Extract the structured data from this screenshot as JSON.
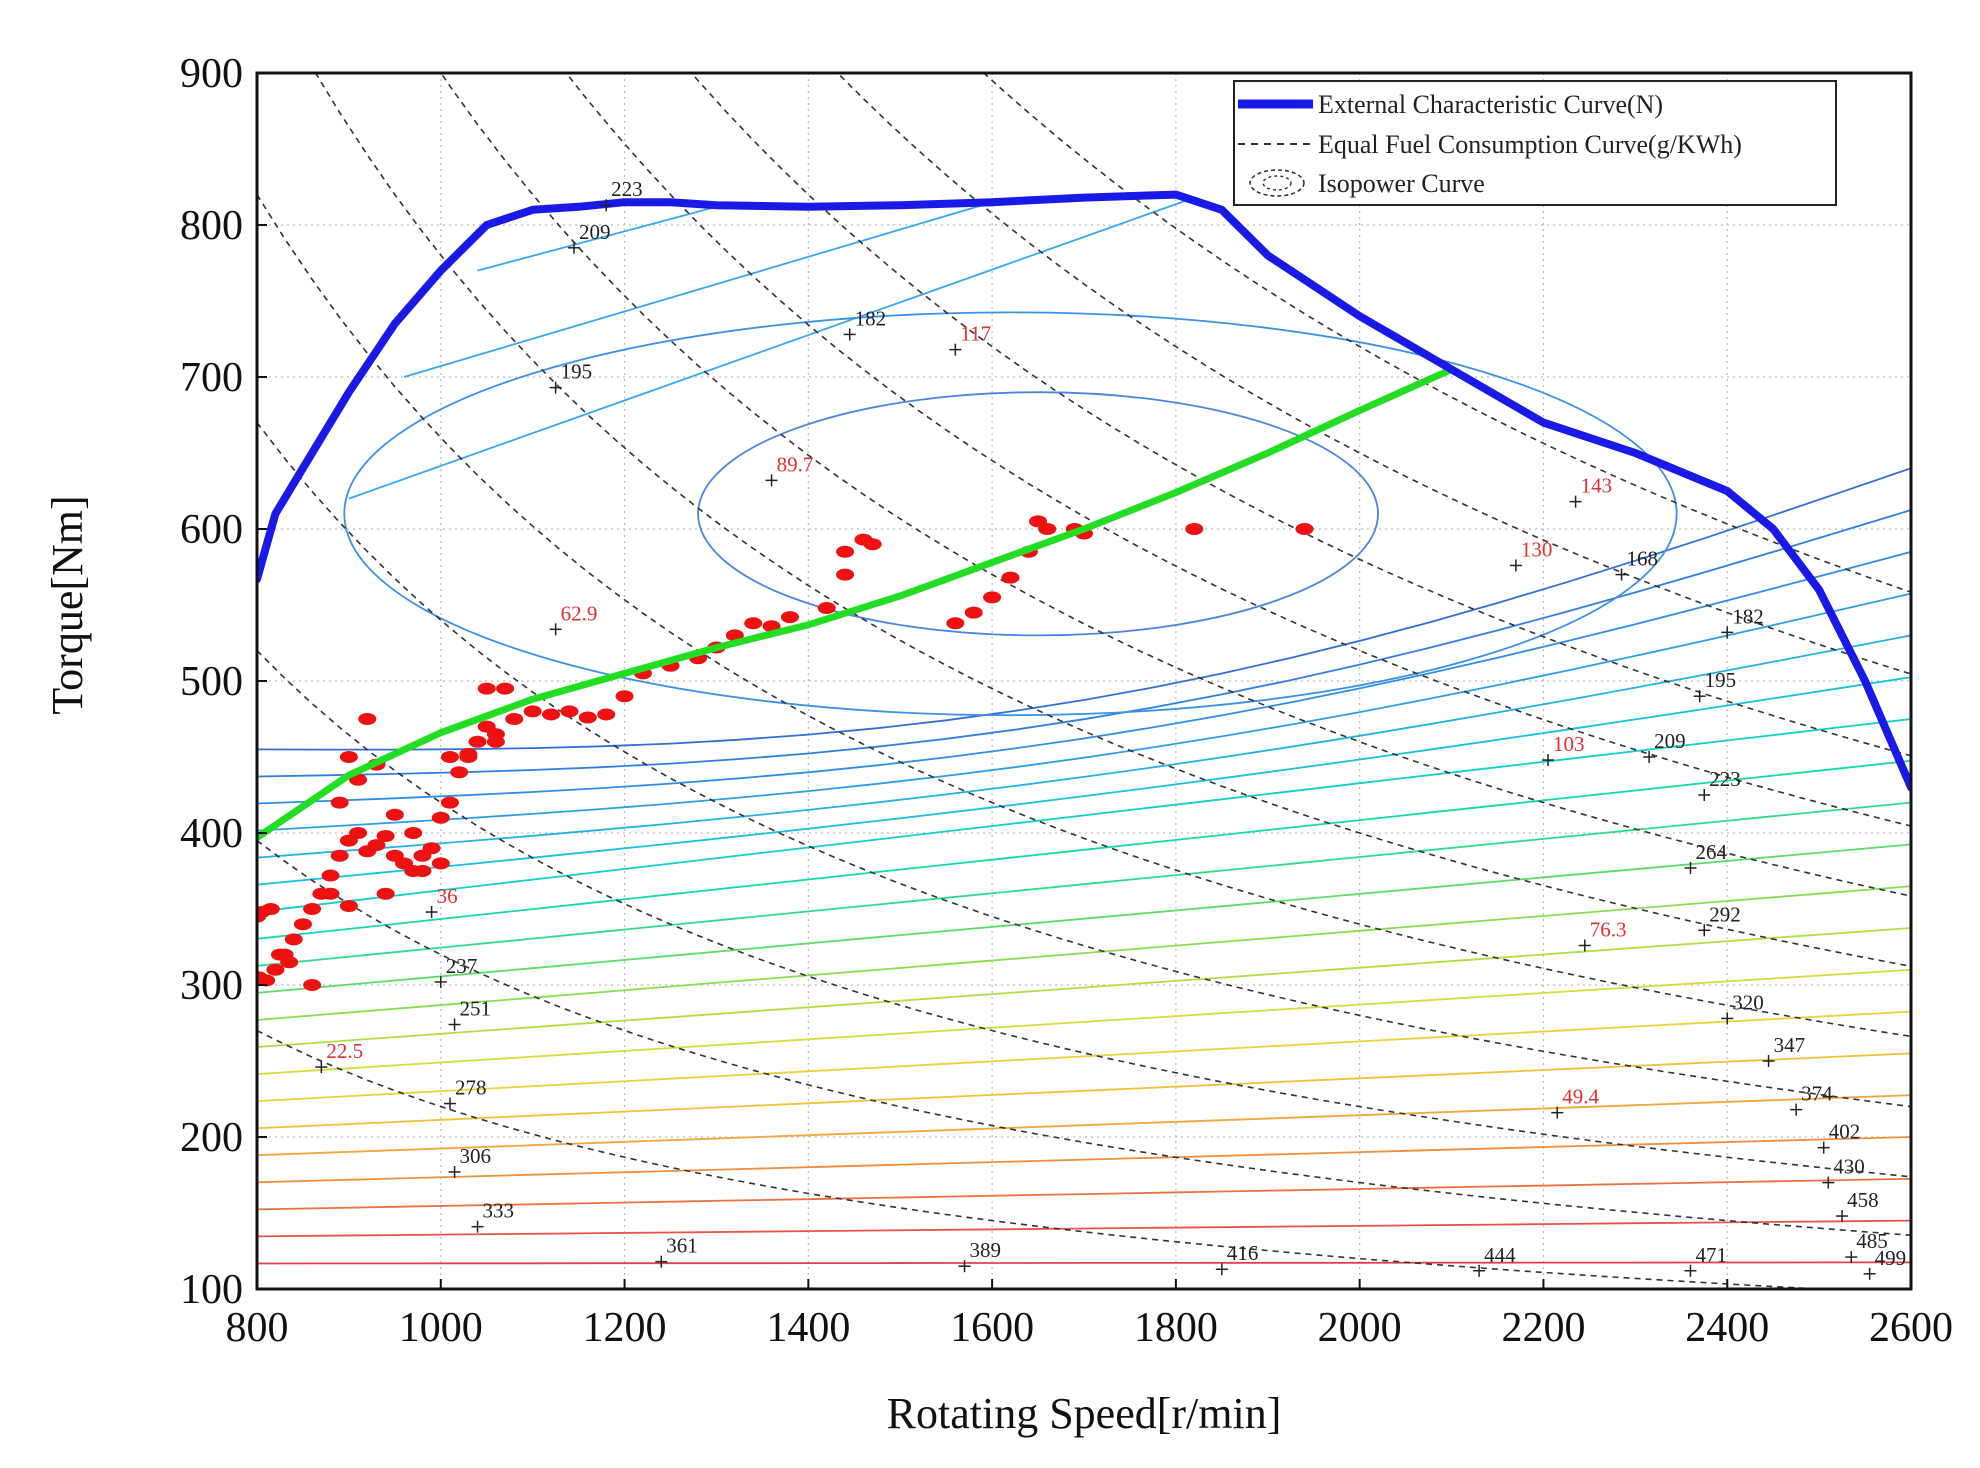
{
  "chart_data": {
    "type": "line",
    "xlabel": "Rotating Speed[r/min]",
    "ylabel": "Torque[Nm]",
    "xlim": [
      800,
      2600
    ],
    "ylim": [
      100,
      900
    ],
    "xticks": [
      800,
      1000,
      1200,
      1400,
      1600,
      1800,
      2000,
      2200,
      2400,
      2600
    ],
    "yticks": [
      100,
      200,
      300,
      400,
      500,
      600,
      700,
      800,
      900
    ],
    "grid": true,
    "legend": {
      "position": "top-right",
      "entries": [
        {
          "key": "external",
          "label": "External Characteristic Curve(N)",
          "color": "#1a1ae6"
        },
        {
          "key": "fuel",
          "label": "Equal Fuel Consumption Curve(g/KWh)",
          "color": "#333333"
        },
        {
          "key": "isopower",
          "label": "Isopower Curve",
          "color": "#333333"
        }
      ]
    },
    "colors": {
      "external": "#1a1ae6",
      "optimal": "#22dd22",
      "points": "#ee1111",
      "fuel_label": "#222222",
      "power_label": "#e03030",
      "grid": "#bbbbbb"
    },
    "external_curve": {
      "name": "External Characteristic Curve(N)",
      "x": [
        800,
        820,
        850,
        900,
        950,
        1000,
        1050,
        1100,
        1150,
        1200,
        1250,
        1300,
        1400,
        1500,
        1600,
        1700,
        1800,
        1850,
        1900,
        2000,
        2100,
        2200,
        2300,
        2400,
        2450,
        2500,
        2550,
        2600
      ],
      "y": [
        567,
        610,
        640,
        690,
        735,
        770,
        800,
        810,
        812,
        815,
        815,
        813,
        812,
        813,
        815,
        818,
        820,
        810,
        780,
        740,
        705,
        670,
        650,
        625,
        600,
        560,
        500,
        430
      ]
    },
    "optimal_curve": {
      "name": "Optimal operating line",
      "x": [
        800,
        900,
        1000,
        1100,
        1200,
        1300,
        1400,
        1500,
        1600,
        1700,
        1800,
        1900,
        2000,
        2100
      ],
      "y": [
        397,
        438,
        466,
        488,
        505,
        522,
        537,
        556,
        578,
        600,
        624,
        650,
        678,
        705
      ]
    },
    "operating_points": {
      "name": "Measured operating points",
      "x": [
        802,
        810,
        820,
        830,
        840,
        850,
        860,
        870,
        880,
        890,
        900,
        910,
        920,
        930,
        940,
        950,
        960,
        970,
        980,
        990,
        1000,
        1010,
        1020,
        1030,
        1040,
        1050,
        1060,
        1080,
        1100,
        1120,
        1140,
        1160,
        1180,
        1200,
        1220,
        1250,
        1280,
        1300,
        1320,
        1340,
        1360,
        1380,
        1420,
        1440,
        1460,
        1560,
        1580,
        1600,
        1620,
        1640,
        1660,
        1690,
        1700,
        1820,
        1940,
        890,
        910,
        930,
        950,
        970,
        900,
        940,
        980,
        1070,
        1060,
        800,
        805,
        815,
        825,
        835,
        860,
        880,
        900,
        920,
        1000,
        1010,
        1030,
        1050,
        1440,
        1470,
        1650
      ],
      "y": [
        305,
        303,
        310,
        320,
        330,
        340,
        350,
        360,
        372,
        385,
        395,
        400,
        388,
        392,
        398,
        385,
        380,
        375,
        385,
        390,
        410,
        420,
        440,
        450,
        460,
        470,
        465,
        475,
        480,
        478,
        480,
        476,
        478,
        490,
        505,
        510,
        515,
        522,
        530,
        538,
        536,
        542,
        548,
        585,
        593,
        538,
        545,
        555,
        568,
        585,
        600,
        600,
        597,
        600,
        600,
        420,
        435,
        445,
        412,
        400,
        352,
        360,
        375,
        495,
        460,
        345,
        348,
        350,
        320,
        315,
        300,
        360,
        450,
        475,
        380,
        450,
        452,
        495,
        570,
        590,
        605
      ]
    },
    "fuel_contours": [
      {
        "label": "223",
        "lx": 1180,
        "ly": 813
      },
      {
        "label": "209",
        "lx": 1145,
        "ly": 785
      },
      {
        "label": "195",
        "lx": 1125,
        "ly": 693
      },
      {
        "label": "182",
        "lx": 1445,
        "ly": 728
      },
      {
        "label": "168",
        "lx": 2285,
        "ly": 570
      },
      {
        "label": "182",
        "lx": 2400,
        "ly": 532
      },
      {
        "label": "195",
        "lx": 2370,
        "ly": 490
      },
      {
        "label": "209",
        "lx": 2315,
        "ly": 450
      },
      {
        "label": "223",
        "lx": 2375,
        "ly": 425
      },
      {
        "label": "237",
        "lx": 1000,
        "ly": 302
      },
      {
        "label": "251",
        "lx": 1015,
        "ly": 274
      },
      {
        "label": "264",
        "lx": 2360,
        "ly": 377
      },
      {
        "label": "278",
        "lx": 1010,
        "ly": 222
      },
      {
        "label": "292",
        "lx": 2375,
        "ly": 336
      },
      {
        "label": "306",
        "lx": 1015,
        "ly": 177
      },
      {
        "label": "320",
        "lx": 2400,
        "ly": 278
      },
      {
        "label": "333",
        "lx": 1040,
        "ly": 141
      },
      {
        "label": "347",
        "lx": 2445,
        "ly": 250
      },
      {
        "label": "361",
        "lx": 1240,
        "ly": 118
      },
      {
        "label": "374",
        "lx": 2475,
        "ly": 218
      },
      {
        "label": "389",
        "lx": 1570,
        "ly": 115
      },
      {
        "label": "402",
        "lx": 2505,
        "ly": 193
      },
      {
        "label": "416",
        "lx": 1850,
        "ly": 113
      },
      {
        "label": "430",
        "lx": 2510,
        "ly": 170
      },
      {
        "label": "444",
        "lx": 2130,
        "ly": 112
      },
      {
        "label": "458",
        "lx": 2525,
        "ly": 148
      },
      {
        "label": "471",
        "lx": 2360,
        "ly": 112
      },
      {
        "label": "485",
        "lx": 2535,
        "ly": 121
      },
      {
        "label": "499",
        "lx": 2555,
        "ly": 110
      }
    ],
    "power_contours": [
      {
        "label": "22.5",
        "lx": 870,
        "ly": 246
      },
      {
        "label": "36",
        "lx": 990,
        "ly": 348
      },
      {
        "label": "49.4",
        "lx": 2215,
        "ly": 216
      },
      {
        "label": "62.9",
        "lx": 1125,
        "ly": 534
      },
      {
        "label": "76.3",
        "lx": 2245,
        "ly": 326
      },
      {
        "label": "89.7",
        "lx": 1360,
        "ly": 632
      },
      {
        "label": "103",
        "lx": 2205,
        "ly": 448
      },
      {
        "label": "117",
        "lx": 1560,
        "ly": 718
      },
      {
        "label": "130",
        "lx": 2170,
        "ly": 576
      },
      {
        "label": "143",
        "lx": 2235,
        "ly": 618
      }
    ]
  }
}
